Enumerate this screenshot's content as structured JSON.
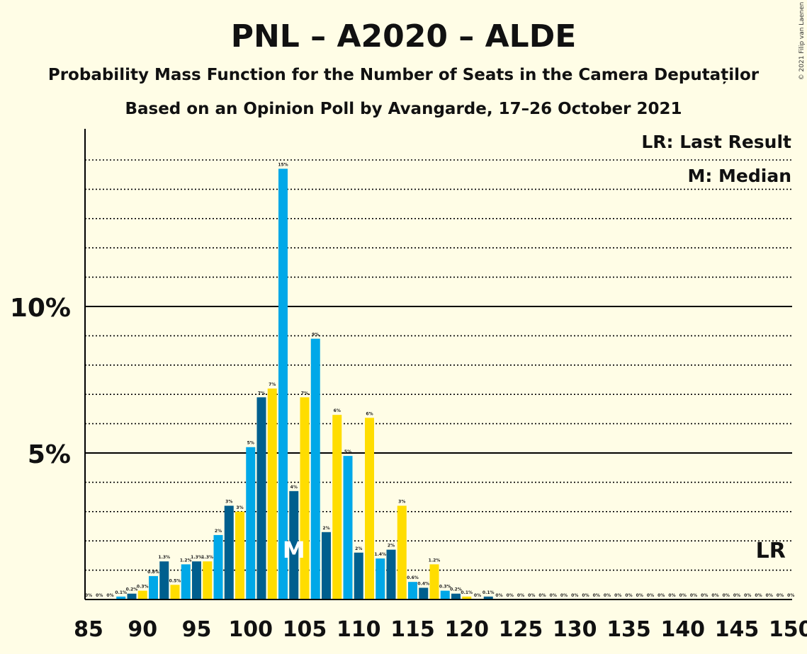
{
  "chart_data": {
    "type": "bar",
    "title": "PNL – A2020 – ALDE",
    "subtitle1": "Probability Mass Function for the Number of Seats in the Camera Deputaților",
    "subtitle2": "Based on an Opinion Poll by Avangarde, 17–26 October 2021",
    "copyright": "© 2021 Filip van Laenen",
    "legend": {
      "lr": "LR: Last Result",
      "median": "M: Median"
    },
    "lr_marker": {
      "seat": 148,
      "label": "LR"
    },
    "median_marker": {
      "seat": 104,
      "label": "M"
    },
    "ylim": [
      0,
      16
    ],
    "yticks": [
      {
        "value": 5,
        "label": "5%"
      },
      {
        "value": 10,
        "label": "10%"
      }
    ],
    "xticks": [
      85,
      90,
      95,
      100,
      105,
      110,
      115,
      120,
      125,
      130,
      135,
      140,
      145,
      150
    ],
    "xlim": [
      85,
      150
    ],
    "colors": [
      "#00A8E8",
      "#005F8E",
      "#FFDD00"
    ],
    "bars": [
      {
        "seat": 85,
        "value": 0.0,
        "label": "0%"
      },
      {
        "seat": 86,
        "value": 0.0,
        "label": "0%"
      },
      {
        "seat": 87,
        "value": 0.0,
        "label": "0%"
      },
      {
        "seat": 88,
        "value": 0.1,
        "label": "0.1%"
      },
      {
        "seat": 89,
        "value": 0.2,
        "label": "0.2%"
      },
      {
        "seat": 90,
        "value": 0.3,
        "label": "0.3%"
      },
      {
        "seat": 91,
        "value": 0.8,
        "label": "0.8%"
      },
      {
        "seat": 92,
        "value": 1.3,
        "label": "1.3%"
      },
      {
        "seat": 93,
        "value": 0.5,
        "label": "0.5%"
      },
      {
        "seat": 94,
        "value": 1.2,
        "label": "1.2%"
      },
      {
        "seat": 95,
        "value": 1.3,
        "label": "1.3%"
      },
      {
        "seat": 96,
        "value": 1.3,
        "label": "1.3%"
      },
      {
        "seat": 97,
        "value": 2.2,
        "label": "2%"
      },
      {
        "seat": 98,
        "value": 3.2,
        "label": "3%"
      },
      {
        "seat": 99,
        "value": 3.0,
        "label": "3%"
      },
      {
        "seat": 100,
        "value": 5.2,
        "label": "5%"
      },
      {
        "seat": 101,
        "value": 6.9,
        "label": "7%"
      },
      {
        "seat": 102,
        "value": 7.2,
        "label": "7%"
      },
      {
        "seat": 103,
        "value": 14.7,
        "label": "15%"
      },
      {
        "seat": 104,
        "value": 3.7,
        "label": "4%"
      },
      {
        "seat": 105,
        "value": 6.9,
        "label": "7%"
      },
      {
        "seat": 106,
        "value": 8.9,
        "label": "9%"
      },
      {
        "seat": 107,
        "value": 2.3,
        "label": "2%"
      },
      {
        "seat": 108,
        "value": 6.3,
        "label": "6%"
      },
      {
        "seat": 109,
        "value": 4.9,
        "label": "5%"
      },
      {
        "seat": 110,
        "value": 1.6,
        "label": "2%"
      },
      {
        "seat": 111,
        "value": 6.2,
        "label": "6%"
      },
      {
        "seat": 112,
        "value": 1.4,
        "label": "1.4%"
      },
      {
        "seat": 113,
        "value": 1.7,
        "label": "2%"
      },
      {
        "seat": 114,
        "value": 3.2,
        "label": "3%"
      },
      {
        "seat": 115,
        "value": 0.6,
        "label": "0.6%"
      },
      {
        "seat": 116,
        "value": 0.4,
        "label": "0.4%"
      },
      {
        "seat": 117,
        "value": 1.2,
        "label": "1.2%"
      },
      {
        "seat": 118,
        "value": 0.3,
        "label": "0.3%"
      },
      {
        "seat": 119,
        "value": 0.2,
        "label": "0.2%"
      },
      {
        "seat": 120,
        "value": 0.1,
        "label": "0.1%"
      },
      {
        "seat": 121,
        "value": 0.0,
        "label": "0%"
      },
      {
        "seat": 122,
        "value": 0.1,
        "label": "0.1%"
      },
      {
        "seat": 123,
        "value": 0.0,
        "label": "0%"
      },
      {
        "seat": 124,
        "value": 0.0,
        "label": "0%"
      },
      {
        "seat": 125,
        "value": 0.0,
        "label": "0%"
      },
      {
        "seat": 126,
        "value": 0.0,
        "label": "0%"
      },
      {
        "seat": 127,
        "value": 0.0,
        "label": "0%"
      },
      {
        "seat": 128,
        "value": 0.0,
        "label": "0%"
      },
      {
        "seat": 129,
        "value": 0.0,
        "label": "0%"
      },
      {
        "seat": 130,
        "value": 0.0,
        "label": "0%"
      },
      {
        "seat": 131,
        "value": 0.0,
        "label": "0%"
      },
      {
        "seat": 132,
        "value": 0.0,
        "label": "0%"
      },
      {
        "seat": 133,
        "value": 0.0,
        "label": "0%"
      },
      {
        "seat": 134,
        "value": 0.0,
        "label": "0%"
      },
      {
        "seat": 135,
        "value": 0.0,
        "label": "0%"
      },
      {
        "seat": 136,
        "value": 0.0,
        "label": "0%"
      },
      {
        "seat": 137,
        "value": 0.0,
        "label": "0%"
      },
      {
        "seat": 138,
        "value": 0.0,
        "label": "0%"
      },
      {
        "seat": 139,
        "value": 0.0,
        "label": "0%"
      },
      {
        "seat": 140,
        "value": 0.0,
        "label": "0%"
      },
      {
        "seat": 141,
        "value": 0.0,
        "label": "0%"
      },
      {
        "seat": 142,
        "value": 0.0,
        "label": "0%"
      },
      {
        "seat": 143,
        "value": 0.0,
        "label": "0%"
      },
      {
        "seat": 144,
        "value": 0.0,
        "label": "0%"
      },
      {
        "seat": 145,
        "value": 0.0,
        "label": "0%"
      },
      {
        "seat": 146,
        "value": 0.0,
        "label": "0%"
      },
      {
        "seat": 147,
        "value": 0.0,
        "label": "0%"
      },
      {
        "seat": 148,
        "value": 0.0,
        "label": "0%"
      },
      {
        "seat": 149,
        "value": 0.0,
        "label": "0%"
      },
      {
        "seat": 150,
        "value": 0.0,
        "label": "0%"
      }
    ]
  }
}
